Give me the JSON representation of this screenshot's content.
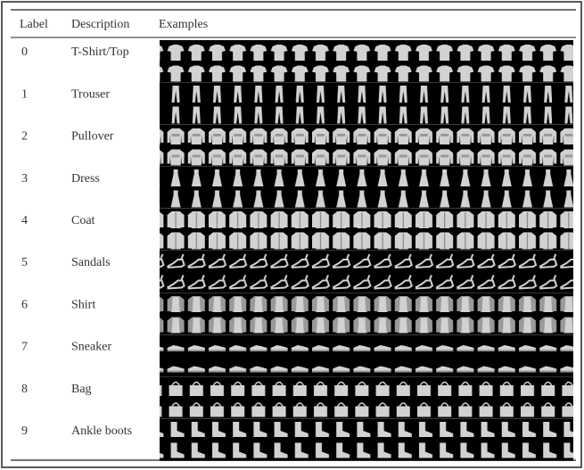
{
  "table": {
    "header": [
      "Label",
      "Description",
      "Examples"
    ],
    "rows": [
      [
        "0",
        "T-Shirt/Top"
      ],
      [
        "1",
        "Trouser"
      ],
      [
        "2",
        "Pullover"
      ],
      [
        "3",
        "Dress"
      ],
      [
        "4",
        "Coat"
      ],
      [
        "5",
        "Sandals"
      ],
      [
        "6",
        "Shirt"
      ],
      [
        "7",
        "Sneaker"
      ],
      [
        "8",
        "Bag"
      ],
      [
        "9",
        "Ankle boots"
      ]
    ]
  }
}
